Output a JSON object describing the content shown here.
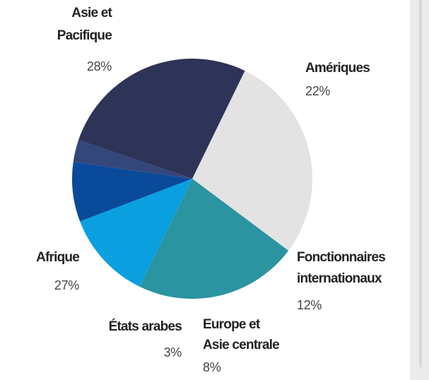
{
  "chart_data": {
    "type": "pie",
    "categories": [
      [
        "Asie et",
        "Pacifique"
      ],
      [
        "Amériques"
      ],
      [
        "Fonctionnaires",
        "internationaux"
      ],
      [
        "Europe et",
        "Asie centrale"
      ],
      [
        "États arabes"
      ],
      [
        "Afrique"
      ]
    ],
    "values": [
      28,
      22,
      12,
      8,
      3,
      27
    ],
    "value_labels": [
      "28%",
      "22%",
      "12%",
      "8%",
      "3%",
      "27%"
    ],
    "colors": [
      "#e3e3e3",
      "#2a94a0",
      "#0aa0e0",
      "#0a4a9a",
      "#34477a",
      "#2e3358"
    ]
  }
}
